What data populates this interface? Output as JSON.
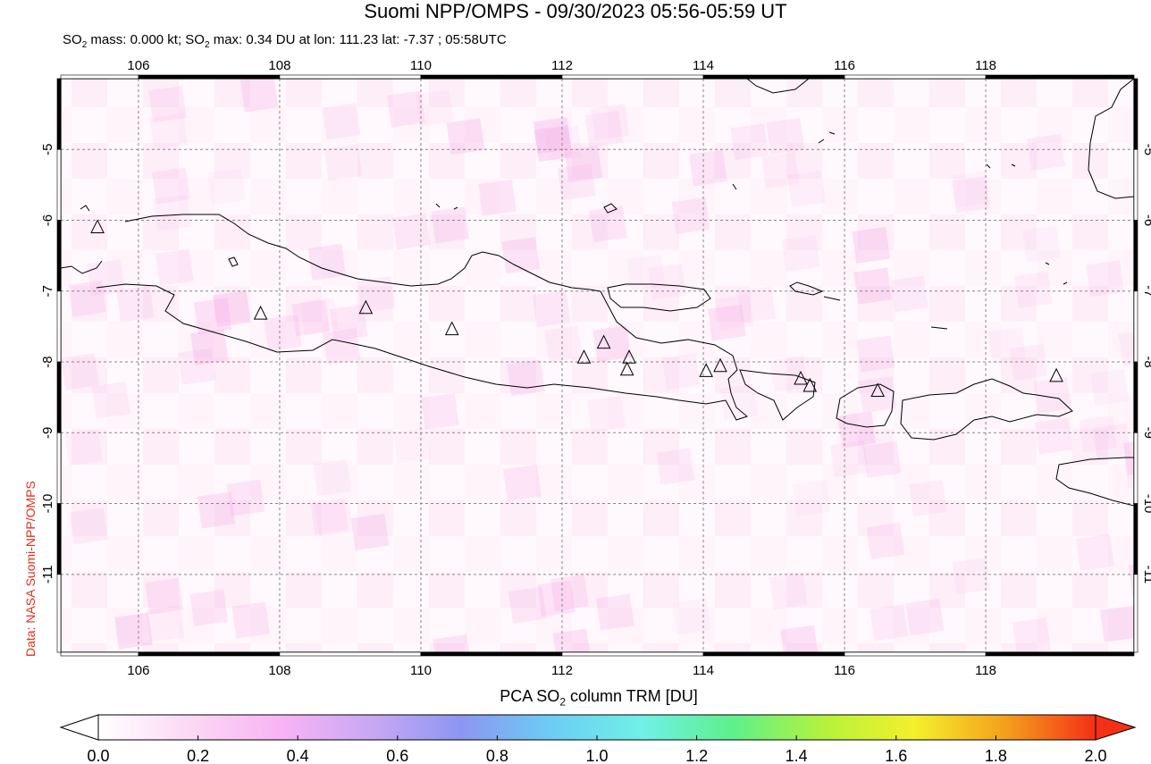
{
  "title": "Suomi NPP/OMPS - 09/30/2023 05:56-05:59 UT",
  "subtitle": {
    "prefix": "SO",
    "sub": "2",
    "text1": " mass: 0.000 kt; SO",
    "sub2": "2",
    "text2": " max: 0.34 DU at lon: 111.23 lat: -7.37 ; 05:58UTC"
  },
  "credit": "Data: NASA Suomi-NPP/OMPS",
  "colorbar": {
    "title_pre": "PCA SO",
    "title_sub": "2",
    "title_post": " column TRM [DU]",
    "ticks": [
      "0.0",
      "0.2",
      "0.4",
      "0.6",
      "0.8",
      "1.0",
      "1.2",
      "1.4",
      "1.6",
      "1.8",
      "2.0"
    ],
    "colors": [
      "#ffffff",
      "#fcd8f4",
      "#f8b4f4",
      "#c9a8f4",
      "#8c96f2",
      "#6ccdf4",
      "#70f0e6",
      "#5ef08c",
      "#b4f23c",
      "#f4f02c",
      "#f4a01c",
      "#f43016"
    ]
  },
  "map": {
    "lon_ticks": [
      "106",
      "108",
      "110",
      "112",
      "114",
      "116",
      "118"
    ],
    "lat_ticks": [
      "-5",
      "-6",
      "-7",
      "-8",
      "-9",
      "-10",
      "-11"
    ],
    "lon_values": [
      106,
      108,
      110,
      112,
      114,
      116,
      118
    ],
    "lat_values": [
      -5,
      -6,
      -7,
      -8,
      -9,
      -10,
      -11
    ],
    "lon_range": [
      104.9,
      120.1
    ],
    "lat_range": [
      -12.1,
      -4.0
    ],
    "volcanoes": [
      {
        "lon": 105.42,
        "lat": -6.1
      },
      {
        "lon": 107.73,
        "lat": -7.32
      },
      {
        "lon": 109.22,
        "lat": -7.24
      },
      {
        "lon": 110.44,
        "lat": -7.54
      },
      {
        "lon": 112.31,
        "lat": -7.94
      },
      {
        "lon": 112.59,
        "lat": -7.73
      },
      {
        "lon": 112.95,
        "lat": -7.94
      },
      {
        "lon": 112.92,
        "lat": -8.11
      },
      {
        "lon": 114.04,
        "lat": -8.13
      },
      {
        "lon": 114.24,
        "lat": -8.06
      },
      {
        "lon": 115.38,
        "lat": -8.24
      },
      {
        "lon": 115.51,
        "lat": -8.34
      },
      {
        "lon": 116.47,
        "lat": -8.41
      },
      {
        "lon": 119.0,
        "lat": -8.2
      }
    ]
  }
}
